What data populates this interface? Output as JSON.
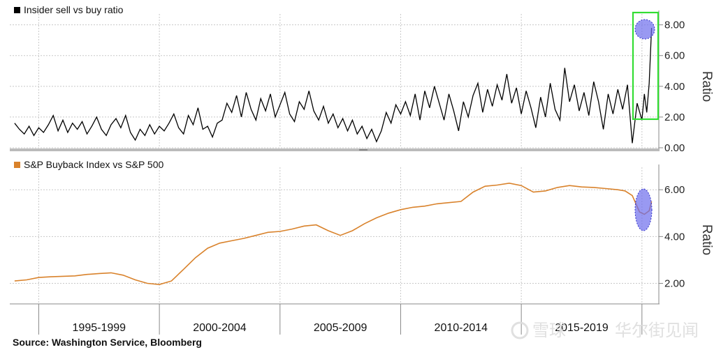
{
  "colors": {
    "top_series": "#000000",
    "bottom_series": "#d9822b",
    "grid": "#c8c8c8",
    "highlight_box": "#33dd33",
    "highlight_fill": "#6e6eec",
    "divider": "#bbbbbb"
  },
  "chart_data": [
    {
      "type": "line",
      "title": "Insider sell vs buy ratio",
      "legend_marker_color": "#000000",
      "ylabel": "Ratio",
      "ylim": [
        0,
        8.8
      ],
      "yticks": [
        "0.00",
        "2.00",
        "4.00",
        "6.00",
        "8.00"
      ],
      "ytick_values": [
        0,
        2,
        4,
        6,
        8
      ],
      "xlim": [
        1993.8,
        2020.7
      ],
      "series": [
        {
          "name": "Insider sell vs buy ratio",
          "x": [
            1994.0,
            1994.2,
            1994.4,
            1994.6,
            1994.8,
            1995.0,
            1995.2,
            1995.4,
            1995.6,
            1995.8,
            1996.0,
            1996.2,
            1996.4,
            1996.6,
            1996.8,
            1997.0,
            1997.2,
            1997.4,
            1997.6,
            1997.8,
            1998.0,
            1998.2,
            1998.4,
            1998.6,
            1998.8,
            1999.0,
            1999.2,
            1999.4,
            1999.6,
            1999.8,
            2000.0,
            2000.2,
            2000.4,
            2000.6,
            2000.8,
            2001.0,
            2001.2,
            2001.4,
            2001.6,
            2001.8,
            2002.0,
            2002.2,
            2002.4,
            2002.6,
            2002.8,
            2003.0,
            2003.2,
            2003.4,
            2003.6,
            2003.8,
            2004.0,
            2004.2,
            2004.4,
            2004.6,
            2004.8,
            2005.0,
            2005.2,
            2005.4,
            2005.6,
            2005.8,
            2006.0,
            2006.2,
            2006.4,
            2006.6,
            2006.8,
            2007.0,
            2007.2,
            2007.4,
            2007.6,
            2007.8,
            2008.0,
            2008.2,
            2008.4,
            2008.6,
            2008.8,
            2009.0,
            2009.2,
            2009.4,
            2009.6,
            2009.8,
            2010.0,
            2010.2,
            2010.4,
            2010.6,
            2010.8,
            2011.0,
            2011.2,
            2011.4,
            2011.6,
            2011.8,
            2012.0,
            2012.2,
            2012.4,
            2012.6,
            2012.8,
            2013.0,
            2013.2,
            2013.4,
            2013.6,
            2013.8,
            2014.0,
            2014.2,
            2014.4,
            2014.6,
            2014.8,
            2015.0,
            2015.2,
            2015.4,
            2015.6,
            2015.8,
            2016.0,
            2016.2,
            2016.4,
            2016.6,
            2016.8,
            2017.0,
            2017.2,
            2017.4,
            2017.6,
            2017.8,
            2018.0,
            2018.2,
            2018.4,
            2018.6,
            2018.8,
            2019.0,
            2019.2,
            2019.4,
            2019.6,
            2019.8,
            2020.0,
            2020.1,
            2020.2,
            2020.3,
            2020.4
          ],
          "values": [
            1.6,
            1.2,
            0.9,
            1.4,
            0.8,
            1.3,
            1.0,
            1.5,
            2.1,
            1.1,
            1.8,
            1.0,
            1.6,
            1.2,
            1.7,
            0.9,
            1.4,
            2.0,
            1.2,
            0.8,
            1.5,
            1.9,
            1.3,
            2.1,
            1.0,
            0.5,
            1.2,
            0.8,
            1.5,
            0.9,
            1.4,
            1.1,
            1.6,
            2.2,
            1.3,
            0.9,
            2.1,
            1.5,
            2.6,
            1.2,
            1.4,
            0.7,
            1.6,
            1.8,
            2.9,
            2.3,
            3.4,
            2.0,
            3.6,
            2.5,
            1.8,
            3.2,
            2.4,
            3.5,
            2.0,
            2.8,
            3.6,
            2.2,
            1.7,
            3.0,
            2.5,
            3.7,
            2.4,
            1.8,
            2.7,
            1.6,
            2.2,
            1.3,
            1.9,
            1.1,
            1.8,
            0.9,
            1.4,
            0.6,
            1.2,
            0.4,
            1.1,
            2.3,
            1.6,
            2.8,
            2.2,
            3.0,
            2.1,
            3.5,
            1.8,
            3.7,
            2.6,
            4.0,
            2.9,
            1.8,
            3.5,
            2.4,
            1.1,
            3.0,
            2.0,
            3.4,
            4.2,
            2.3,
            3.8,
            2.7,
            4.1,
            3.1,
            4.8,
            2.9,
            3.9,
            2.2,
            3.7,
            2.6,
            1.3,
            3.3,
            2.0,
            4.2,
            2.5,
            1.8,
            5.2,
            3.0,
            4.1,
            2.4,
            3.6,
            2.1,
            4.3,
            3.0,
            1.2,
            3.5,
            2.2,
            3.8,
            2.5,
            4.1,
            0.3,
            2.9,
            1.8,
            3.5,
            2.3,
            4.2,
            7.8
          ]
        }
      ],
      "annotations": [
        "highlight box around 2020 spike"
      ]
    },
    {
      "type": "line",
      "title": "S&P Buyback Index vs S&P 500",
      "legend_marker_color": "#d9822b",
      "ylabel": "Ratio",
      "ylim": [
        1.3,
        6.9
      ],
      "yticks": [
        "2.00",
        "4.00",
        "6.00"
      ],
      "ytick_values": [
        2,
        4,
        6
      ],
      "xlim": [
        1993.8,
        2020.7
      ],
      "series": [
        {
          "name": "S&P Buyback Index vs S&P 500",
          "x": [
            1994.0,
            1994.5,
            1995.0,
            1995.5,
            1996.0,
            1996.5,
            1997.0,
            1997.5,
            1998.0,
            1998.5,
            1999.0,
            1999.5,
            2000.0,
            2000.5,
            2001.0,
            2001.5,
            2002.0,
            2002.5,
            2003.0,
            2003.5,
            2004.0,
            2004.5,
            2005.0,
            2005.5,
            2006.0,
            2006.5,
            2007.0,
            2007.5,
            2008.0,
            2008.5,
            2009.0,
            2009.5,
            2010.0,
            2010.5,
            2011.0,
            2011.5,
            2012.0,
            2012.5,
            2013.0,
            2013.5,
            2014.0,
            2014.5,
            2015.0,
            2015.5,
            2016.0,
            2016.5,
            2017.0,
            2017.5,
            2018.0,
            2018.5,
            2019.0,
            2019.3,
            2019.6,
            2019.9,
            2020.1,
            2020.3,
            2020.4
          ],
          "values": [
            2.1,
            2.15,
            2.25,
            2.28,
            2.3,
            2.32,
            2.38,
            2.42,
            2.45,
            2.35,
            2.15,
            2.0,
            1.95,
            2.1,
            2.6,
            3.1,
            3.5,
            3.72,
            3.82,
            3.92,
            4.05,
            4.18,
            4.22,
            4.32,
            4.45,
            4.5,
            4.25,
            4.05,
            4.25,
            4.55,
            4.8,
            5.0,
            5.15,
            5.25,
            5.3,
            5.4,
            5.45,
            5.5,
            5.9,
            6.15,
            6.2,
            6.28,
            6.18,
            5.9,
            5.95,
            6.1,
            6.18,
            6.12,
            6.1,
            6.05,
            6.0,
            5.95,
            5.75,
            5.05,
            4.95,
            5.1,
            5.5
          ]
        }
      ],
      "annotations": [
        "highlight ellipse around 2020 drop"
      ]
    }
  ],
  "x_axis": {
    "periods": [
      "1995-1999",
      "2000-2004",
      "2005-2009",
      "2010-2014",
      "2015-2019"
    ],
    "year_dividers": [
      1995,
      2000,
      2005,
      2010,
      2015,
      2020
    ]
  },
  "footer": {
    "source": "Source: Washington Service, Bloomberg"
  },
  "watermark": {
    "left_text": "雪球",
    "right_text": "华尔街见闻"
  }
}
